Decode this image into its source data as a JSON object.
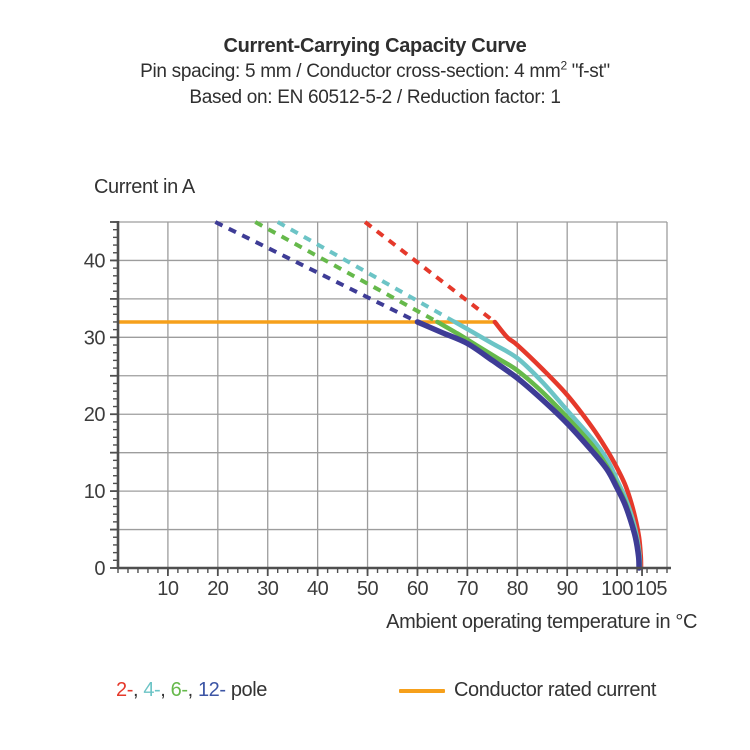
{
  "header": {
    "title": "Current-Carrying Capacity Curve",
    "subtitle_parts": {
      "pre": "Pin spacing: 5 mm / Conductor cross-section: 4 mm",
      "sup": "2",
      "post": " \"f-st\""
    },
    "basis": "Based on: EN 60512-5-2 / Reduction factor: 1"
  },
  "legend": {
    "poles": [
      {
        "label": "2-",
        "color": "#e5392b"
      },
      {
        "label": "4-",
        "color": "#6cc4c6"
      },
      {
        "label": "6-",
        "color": "#66b94b"
      },
      {
        "label": "12-",
        "color": "#3c55a5"
      }
    ],
    "separator": ", ",
    "poles_suffix": " pole",
    "text_color": "#333333",
    "rated_label": "Conductor rated current",
    "rated_color": "#f6a01b"
  },
  "chart_data": {
    "type": "line",
    "title": "Current-Carrying Capacity Curve",
    "xlabel": "Ambient operating temperature in °C",
    "ylabel": "Current in A",
    "xlim": [
      0,
      110
    ],
    "ylim": [
      0,
      45
    ],
    "x_major_ticks": [
      10,
      20,
      30,
      40,
      50,
      60,
      70,
      80,
      90,
      100,
      105
    ],
    "x_label_offsets": {
      "105": 9
    },
    "y_major_ticks": [
      0,
      10,
      20,
      30,
      40
    ],
    "x_grid_step": 10,
    "y_grid_step": 5,
    "x_minor_step": 2,
    "y_minor_step": 1,
    "grid_on": true,
    "grid_color": "#9d9d9d",
    "axis_color": "#4f4f4f",
    "legend_position": "bottom",
    "rated_current": {
      "value": 32,
      "x_start": 0,
      "x_end": 75.5,
      "color": "#f6a01b",
      "width": 3.5
    },
    "series": [
      {
        "name": "2-pole",
        "color": "#e5392b",
        "width": 4.5,
        "dashed": [
          [
            49.5,
            45
          ],
          [
            75.5,
            32
          ]
        ],
        "solid": [
          [
            75.5,
            32
          ],
          [
            78,
            30.0
          ],
          [
            80,
            29.0
          ],
          [
            85,
            25.9
          ],
          [
            90,
            22.5
          ],
          [
            95,
            18.3
          ],
          [
            98,
            15.3
          ],
          [
            100,
            13.0
          ],
          [
            101.5,
            11.0
          ],
          [
            102.6,
            9.0
          ],
          [
            103.6,
            6.6
          ],
          [
            104.4,
            4.0
          ],
          [
            104.75,
            1.5
          ],
          [
            104.8,
            0
          ]
        ]
      },
      {
        "name": "4-pole",
        "color": "#6cc4c6",
        "width": 4.5,
        "dashed": [
          [
            32,
            45
          ],
          [
            67.5,
            32
          ]
        ],
        "solid": [
          [
            67.5,
            32
          ],
          [
            71,
            30.7
          ],
          [
            75,
            29.2
          ],
          [
            80,
            27.3
          ],
          [
            85,
            24.2
          ],
          [
            90,
            20.5
          ],
          [
            95,
            16.8
          ],
          [
            98,
            14.1
          ],
          [
            100,
            11.4
          ],
          [
            101.6,
            9.2
          ],
          [
            102.9,
            6.8
          ],
          [
            103.9,
            4.3
          ],
          [
            104.5,
            1.7
          ],
          [
            104.6,
            0
          ]
        ]
      },
      {
        "name": "6-pole",
        "color": "#66b94b",
        "width": 4.5,
        "dashed": [
          [
            27.5,
            45
          ],
          [
            64,
            32
          ]
        ],
        "solid": [
          [
            64,
            32
          ],
          [
            68,
            30.5
          ],
          [
            72,
            28.9
          ],
          [
            76,
            27.3
          ],
          [
            80,
            25.7
          ],
          [
            85,
            22.9
          ],
          [
            90,
            19.6
          ],
          [
            95,
            16.0
          ],
          [
            98,
            13.2
          ],
          [
            100,
            10.8
          ],
          [
            101.6,
            8.6
          ],
          [
            102.8,
            6.3
          ],
          [
            103.8,
            4.0
          ],
          [
            104.4,
            1.6
          ],
          [
            104.5,
            0
          ]
        ]
      },
      {
        "name": "12-pole",
        "color": "#3e3c96",
        "width": 5.5,
        "dashed": [
          [
            19.5,
            45
          ],
          [
            60,
            32
          ]
        ],
        "solid": [
          [
            60,
            32
          ],
          [
            65,
            30.6
          ],
          [
            70,
            29.2
          ],
          [
            75,
            27.0
          ],
          [
            80,
            24.7
          ],
          [
            85,
            21.9
          ],
          [
            90,
            18.8
          ],
          [
            95,
            15.2
          ],
          [
            98,
            12.8
          ],
          [
            100,
            10.4
          ],
          [
            101.5,
            8.4
          ],
          [
            102.7,
            6.2
          ],
          [
            103.7,
            3.9
          ],
          [
            104.3,
            1.5
          ],
          [
            104.4,
            0
          ]
        ]
      }
    ]
  }
}
